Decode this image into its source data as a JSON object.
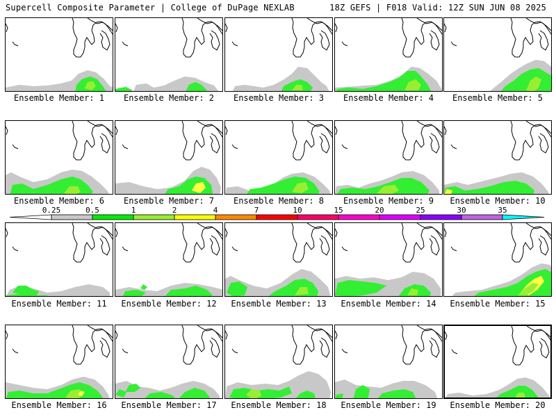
{
  "header": {
    "left_title": "Supercell Composite Parameter | College of DuPage NEXLAB",
    "right_title": "18Z GEFS | F018 Valid: 12Z SUN JUN 08 2025"
  },
  "panels": [
    {
      "label": "Ensemble Member: 1"
    },
    {
      "label": "Ensemble Member: 2"
    },
    {
      "label": "Ensemble Member: 3"
    },
    {
      "label": "Ensemble Member: 4"
    },
    {
      "label": "Ensemble Member: 5"
    },
    {
      "label": "Ensemble Member: 6"
    },
    {
      "label": "Ensemble Member: 7"
    },
    {
      "label": "Ensemble Member: 8"
    },
    {
      "label": "Ensemble Member: 9"
    },
    {
      "label": "Ensemble Member: 10"
    },
    {
      "label": "Ensemble Member: 11"
    },
    {
      "label": "Ensemble Member: 12"
    },
    {
      "label": "Ensemble Member: 13"
    },
    {
      "label": "Ensemble Member: 14"
    },
    {
      "label": "Ensemble Member: 15"
    },
    {
      "label": "Ensemble Member: 16"
    },
    {
      "label": "Ensemble Member: 17"
    },
    {
      "label": "Ensemble Member: 18"
    },
    {
      "label": "Ensemble Member: 19"
    },
    {
      "label": "Ensemble Member: 20"
    }
  ],
  "legend": {
    "ticks": [
      "0.25",
      "0.5",
      "1",
      "2",
      "4",
      "7",
      "10",
      "15",
      "20",
      "25",
      "30",
      "35"
    ],
    "colors": [
      "#ffffff",
      "#c8c8c8",
      "#00ee00",
      "#99ee33",
      "#ffff00",
      "#ff8800",
      "#ff0000",
      "#ff0066",
      "#ff00cc",
      "#dd00ff",
      "#8800ff",
      "#bb66dd",
      "#00ffff"
    ]
  },
  "colors": {
    "gray": "#c8c8c8",
    "green": "#33ee33",
    "lightgreen": "#99ee33",
    "yellow": "#ffff44"
  }
}
